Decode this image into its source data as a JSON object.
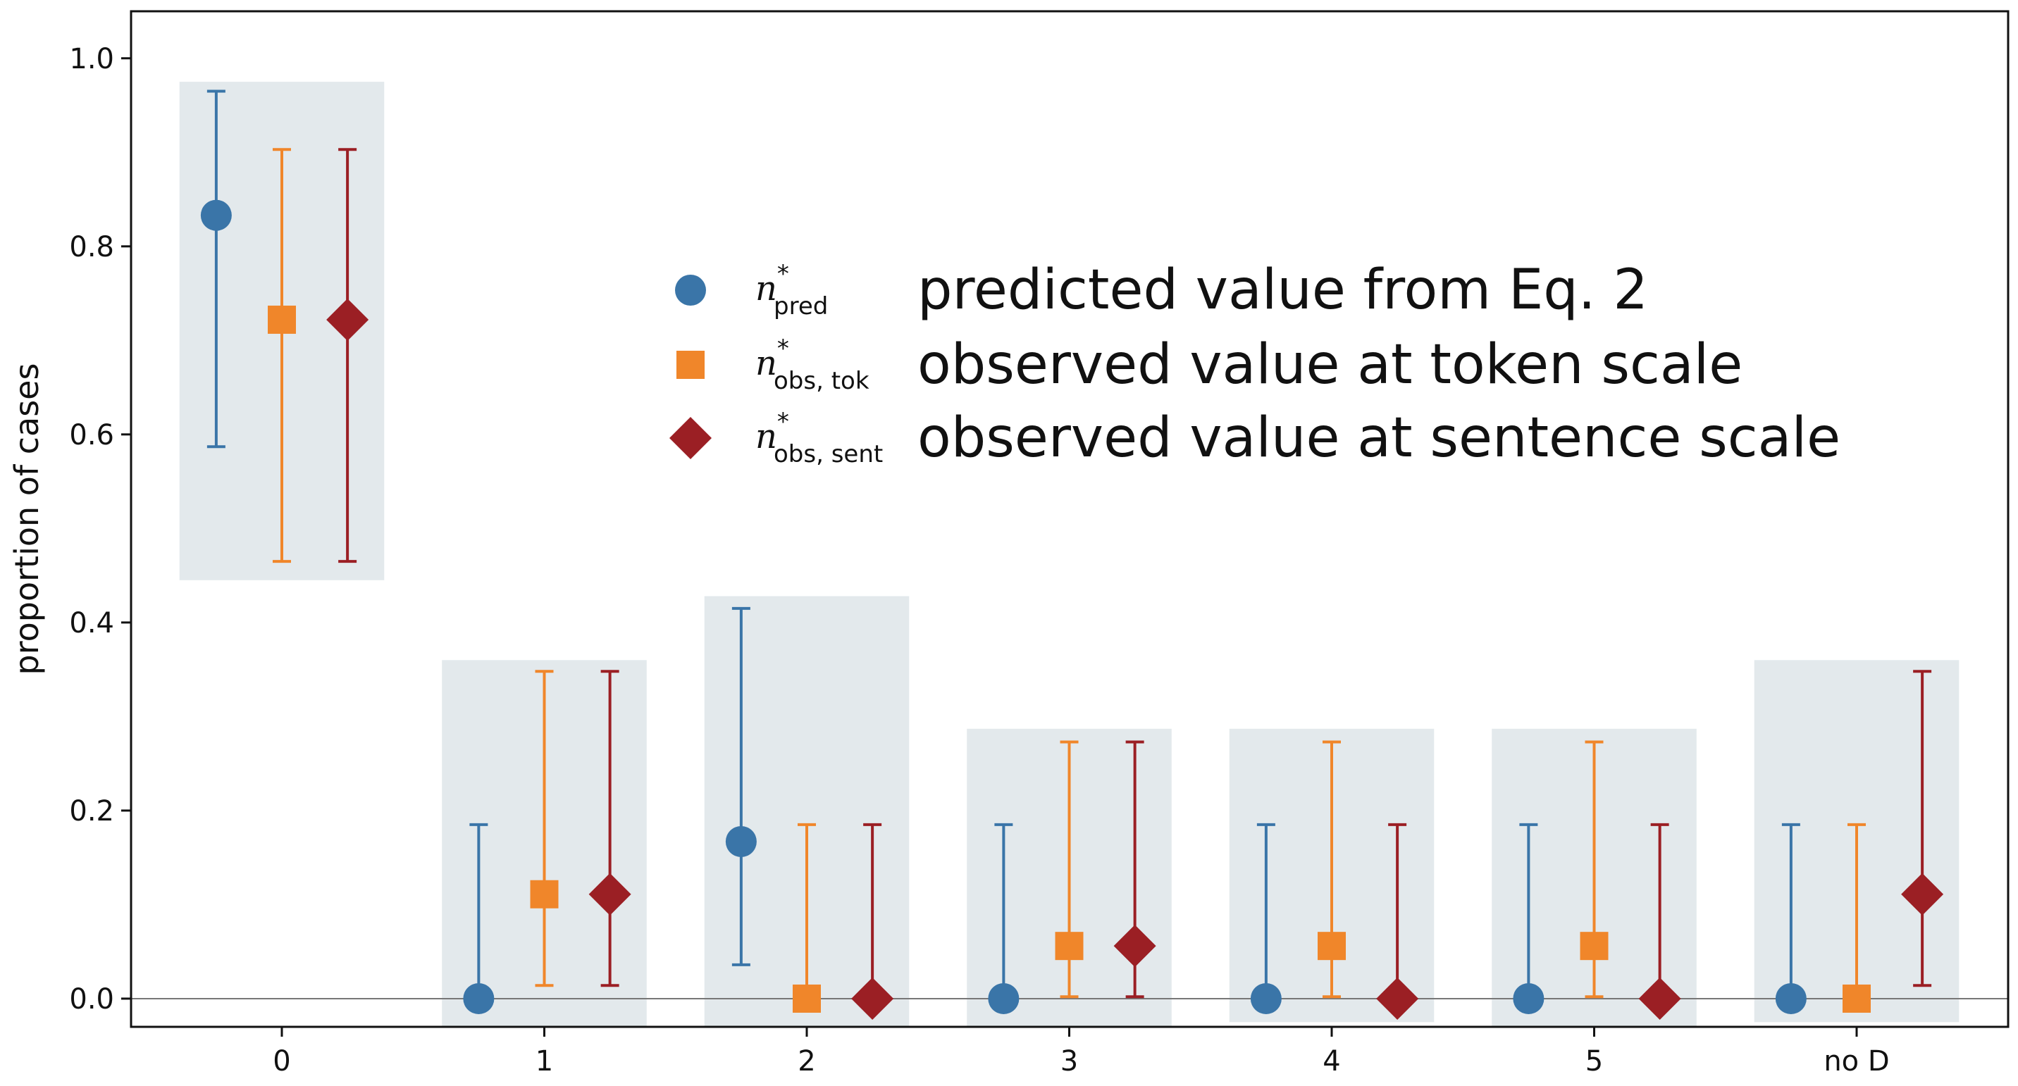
{
  "chart_data": {
    "type": "scatter",
    "title": "",
    "xlabel": "",
    "ylabel": "proportion of cases",
    "ylim": [
      -0.03,
      1.05
    ],
    "yticks": [
      0.0,
      0.2,
      0.4,
      0.6,
      0.8,
      1.0
    ],
    "ytick_labels": [
      "0.0",
      "0.2",
      "0.4",
      "0.6",
      "0.8",
      "1.0"
    ],
    "categories": [
      "0",
      "1",
      "2",
      "3",
      "4",
      "5",
      "no D"
    ],
    "hline": 0.0,
    "grid": false,
    "legend_position": "center",
    "shaded_boxes": [
      {
        "category": "0",
        "low": 0.445,
        "high": 0.975
      },
      {
        "category": "1",
        "low": -0.03,
        "high": 0.36
      },
      {
        "category": "2",
        "low": -0.03,
        "high": 0.428
      },
      {
        "category": "3",
        "low": -0.03,
        "high": 0.287
      },
      {
        "category": "4",
        "low": -0.025,
        "high": 0.287
      },
      {
        "category": "5",
        "low": -0.03,
        "high": 0.287
      },
      {
        "category": "no D",
        "low": -0.025,
        "high": 0.36
      }
    ],
    "series": [
      {
        "name": "n*pred",
        "symbol": "n",
        "subscript": "pred",
        "description": "predicted value from Eq. 2",
        "marker": "circle",
        "color": "#3a75a8",
        "offset": -0.25,
        "values": [
          0.833,
          0.0,
          0.167,
          0.0,
          0.0,
          0.0,
          0.0
        ],
        "err_low": [
          0.587,
          null,
          0.036,
          null,
          null,
          null,
          null
        ],
        "err_high": [
          0.965,
          0.185,
          0.415,
          0.185,
          0.185,
          0.185,
          0.185
        ],
        "present": [
          true,
          true,
          true,
          true,
          true,
          true,
          true
        ]
      },
      {
        "name": "n*obs,tok",
        "symbol": "n",
        "subscript": "obs, tok",
        "description": "observed value at token scale",
        "marker": "square",
        "color": "#f0862a",
        "offset": 0.0,
        "values": [
          0.722,
          0.111,
          0.0,
          0.056,
          0.056,
          0.056,
          0.0
        ],
        "err_low": [
          0.465,
          0.014,
          null,
          0.002,
          0.002,
          0.002,
          null
        ],
        "err_high": [
          0.903,
          0.348,
          0.185,
          0.273,
          0.273,
          0.273,
          0.185
        ],
        "present": [
          true,
          true,
          true,
          true,
          true,
          true,
          true
        ]
      },
      {
        "name": "n*obs,sent",
        "symbol": "n",
        "subscript": "obs, sent",
        "description": "observed value at sentence scale",
        "marker": "diamond",
        "color": "#9b1f24",
        "offset": 0.25,
        "values": [
          0.722,
          0.111,
          0.0,
          0.056,
          0.0,
          0.0,
          0.111
        ],
        "err_low": [
          0.465,
          0.014,
          null,
          0.002,
          null,
          null,
          0.014
        ],
        "err_high": [
          0.903,
          0.348,
          0.185,
          0.273,
          0.185,
          0.185,
          0.348
        ],
        "present": [
          true,
          true,
          true,
          true,
          true,
          true,
          true
        ]
      }
    ]
  },
  "colors": {
    "box": "#e3e9ec",
    "axis": "#111111",
    "hline": "#777777"
  }
}
